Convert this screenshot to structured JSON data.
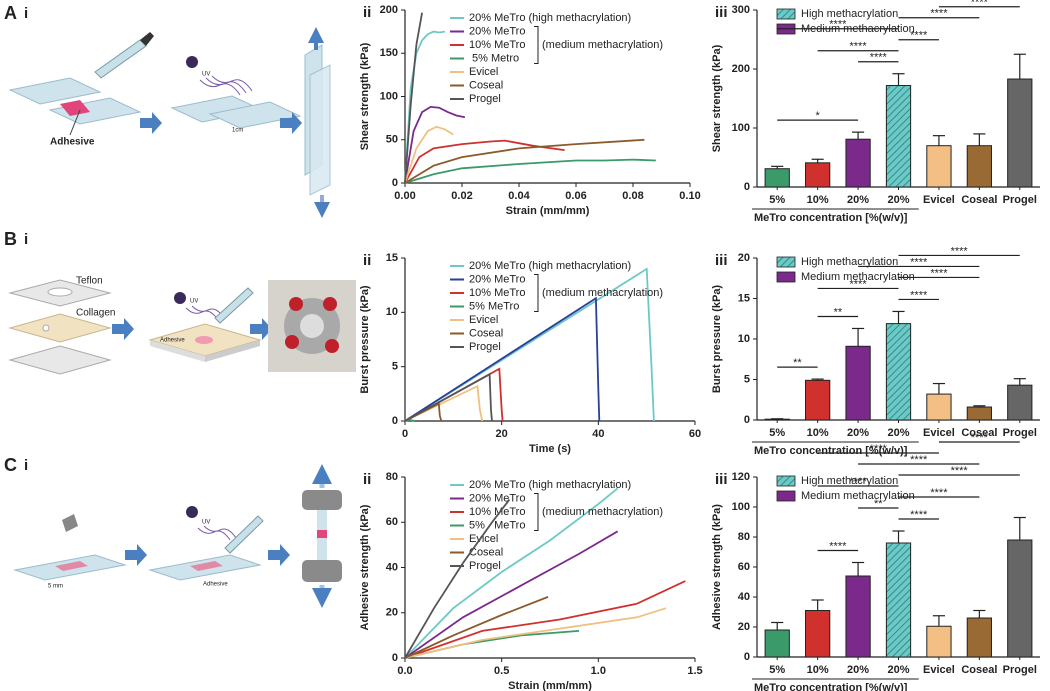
{
  "panels": [
    {
      "letter": "A",
      "sub": "i"
    },
    {
      "letter": "B",
      "sub": "i"
    },
    {
      "letter": "C",
      "sub": "i"
    }
  ],
  "illustrations": [
    {
      "texts": [
        "Adhesive",
        "UV",
        "1cm"
      ]
    },
    {
      "texts": [
        "Teflon",
        "Collagen",
        "UV",
        "Adhesive"
      ]
    },
    {
      "texts": [
        "UV",
        "Adhesive",
        "5 mm"
      ]
    }
  ],
  "chart_data": [
    {
      "type": "line",
      "label": "ii",
      "xlabel": "Strain (mm/mm)",
      "ylabel": "Shear strength (kPa)",
      "legend_group_label": "(medium methacrylation)",
      "xlim": [
        0,
        0.1
      ],
      "xticks": [
        {
          "value": 0,
          "label": "0.00"
        },
        {
          "value": 0.02,
          "label": "0.02"
        },
        {
          "value": 0.04,
          "label": "0.04"
        },
        {
          "value": 0.06,
          "label": "0.06"
        },
        {
          "value": 0.08,
          "label": "0.08"
        },
        {
          "value": 0.1,
          "label": "0.10"
        }
      ],
      "ylim": [
        0,
        200
      ],
      "yticks": [
        0,
        50,
        100,
        150,
        200
      ],
      "series": [
        {
          "name": "20% MeTro (high methacrylation)",
          "color": "#6cc9c5",
          "x": [
            0,
            0.002,
            0.004,
            0.006,
            0.008,
            0.01,
            0.012,
            0.014
          ],
          "values": [
            0,
            110,
            150,
            165,
            172,
            175,
            174,
            175
          ]
        },
        {
          "name": "20% MeTro",
          "color": "#7b2a8c",
          "x": [
            0,
            0.003,
            0.006,
            0.009,
            0.012,
            0.015,
            0.018,
            0.021
          ],
          "values": [
            0,
            60,
            82,
            88,
            87,
            82,
            78,
            76
          ]
        },
        {
          "name": "10% MeTro",
          "color": "#d0312d",
          "x": [
            0,
            0.005,
            0.01,
            0.02,
            0.03,
            0.035,
            0.045,
            0.056
          ],
          "values": [
            0,
            30,
            40,
            45,
            48,
            49,
            43,
            38
          ]
        },
        {
          "name": " 5% Metro",
          "color": "#3a9a6a",
          "x": [
            0,
            0.01,
            0.02,
            0.04,
            0.06,
            0.07,
            0.08,
            0.088
          ],
          "values": [
            0,
            10,
            17,
            22,
            26,
            26,
            27,
            26
          ]
        },
        {
          "name": "Evicel",
          "color": "#f0c080",
          "x": [
            0,
            0.004,
            0.008,
            0.011,
            0.014,
            0.017
          ],
          "values": [
            0,
            40,
            60,
            65,
            62,
            56
          ]
        },
        {
          "name": "Coseal",
          "color": "#8b5a2b",
          "x": [
            0,
            0.01,
            0.02,
            0.04,
            0.06,
            0.084
          ],
          "values": [
            0,
            20,
            30,
            40,
            45,
            50
          ]
        },
        {
          "name": "Progel",
          "color": "#555555",
          "x": [
            0,
            0.002,
            0.004,
            0.006
          ],
          "values": [
            0,
            90,
            160,
            197
          ]
        }
      ]
    },
    {
      "type": "bar",
      "label": "iii",
      "xlabel": "MeTro concentration [%(w/v)]",
      "ylabel": "Shear strength (kPa)",
      "ylim": [
        0,
        300
      ],
      "yticks": [
        0,
        100,
        200,
        300
      ],
      "categories": [
        "5%",
        "10%",
        "20%",
        "20%",
        "Evicel",
        "Coseal",
        "Progel"
      ],
      "values": [
        31,
        41,
        81,
        172,
        70,
        70,
        183
      ],
      "errors": [
        4,
        6,
        12,
        20,
        17,
        20,
        42
      ],
      "colors": [
        "#3a9a6a",
        "#d0312d",
        "#7b2a8c",
        "#6cc9c5",
        "#f3bf85",
        "#9a6a35",
        "#666666"
      ],
      "hatched": [
        false,
        false,
        false,
        true,
        false,
        false,
        false
      ],
      "legend": [
        {
          "name": "High methacrylation",
          "color": "#6cc9c5",
          "hatch": true
        },
        {
          "name": "Medium methacrylation",
          "color": "#7b2a8c",
          "hatch": false
        }
      ],
      "annotations": [
        {
          "label": "****",
          "between": [
            5,
            6
          ]
        },
        {
          "label": "****",
          "between": [
            4,
            6
          ]
        },
        {
          "label": "****",
          "between": [
            3,
            5
          ]
        },
        {
          "label": "****",
          "between": [
            0,
            3
          ]
        },
        {
          "label": "****",
          "between": [
            3,
            4
          ]
        },
        {
          "label": "****",
          "between": [
            1,
            3
          ]
        },
        {
          "label": "****",
          "between": [
            2,
            3
          ]
        },
        {
          "label": "*",
          "between": [
            0,
            2
          ]
        }
      ]
    },
    {
      "type": "line",
      "label": "ii",
      "xlabel": "Time (s)",
      "ylabel": "Burst pressure (kPa)",
      "legend_group_label": "(medium methacrylation)",
      "xlim": [
        0,
        60
      ],
      "xticks": [
        0,
        20,
        40,
        60
      ],
      "ylim": [
        0,
        15
      ],
      "yticks": [
        0,
        5,
        10,
        15
      ],
      "series": [
        {
          "name": "20% MeTro (high methacrylation)",
          "color": "#6cc9c5",
          "x": [
            0,
            50,
            51,
            51.5
          ],
          "values": [
            0,
            14,
            5,
            0
          ]
        },
        {
          "name": "20% MeTro",
          "color": "#2a3f9a",
          "x": [
            0,
            39.5,
            40,
            40.2
          ],
          "values": [
            0,
            11.3,
            3,
            0
          ]
        },
        {
          "name": "10% MeTro",
          "color": "#d0312d",
          "x": [
            0,
            19.5,
            20,
            20.2
          ],
          "values": [
            0,
            4.8,
            1,
            0
          ]
        },
        {
          "name": "5% MeTro",
          "color": "#3a9a6a",
          "x": [
            0,
            1,
            2
          ],
          "values": [
            0,
            0.1,
            0
          ]
        },
        {
          "name": "Evicel",
          "color": "#f0c080",
          "x": [
            0,
            15,
            15.5,
            16
          ],
          "values": [
            0,
            3.2,
            1,
            0
          ]
        },
        {
          "name": "Coseal",
          "color": "#8b5a2b",
          "x": [
            0,
            7,
            7.2,
            7.5
          ],
          "values": [
            0,
            1.6,
            0.5,
            0
          ]
        },
        {
          "name": "Progel",
          "color": "#555555",
          "x": [
            0,
            17.5,
            17.8,
            18
          ],
          "values": [
            0,
            4.3,
            1,
            0
          ]
        }
      ]
    },
    {
      "type": "bar",
      "label": "iii",
      "xlabel": "MeTro concentration [%(w/v)]",
      "ylabel": "Burst pressure (kPa)",
      "ylim": [
        0,
        20
      ],
      "yticks": [
        0,
        5,
        10,
        15,
        20
      ],
      "categories": [
        "5%",
        "10%",
        "20%",
        "20%",
        "Evicel",
        "Coseal",
        "Progel"
      ],
      "values": [
        0.1,
        4.9,
        9.1,
        11.9,
        3.2,
        1.6,
        4.3
      ],
      "errors": [
        0.05,
        0.15,
        2.2,
        1.5,
        1.3,
        0.15,
        0.8
      ],
      "colors": [
        "#3a9a6a",
        "#d0312d",
        "#7b2a8c",
        "#6cc9c5",
        "#f3bf85",
        "#9a6a35",
        "#666666"
      ],
      "hatched": [
        false,
        false,
        false,
        true,
        false,
        false,
        false
      ],
      "legend": [
        {
          "name": "High methacrylation",
          "color": "#6cc9c5",
          "hatch": true
        },
        {
          "name": "Medium methacrylation",
          "color": "#7b2a8c",
          "hatch": false
        }
      ],
      "annotations": [
        {
          "label": "****",
          "between": [
            3,
            6
          ]
        },
        {
          "label": "****",
          "between": [
            2,
            5
          ]
        },
        {
          "label": "****",
          "between": [
            3,
            5
          ]
        },
        {
          "label": "****",
          "between": [
            1,
            3
          ]
        },
        {
          "label": "****",
          "between": [
            3,
            4
          ]
        },
        {
          "label": "**",
          "between": [
            1,
            2
          ]
        },
        {
          "label": "**",
          "between": [
            0,
            1
          ]
        }
      ]
    },
    {
      "type": "line",
      "label": "ii",
      "xlabel": "Strain (mm/mm)",
      "ylabel": "Adhesive strength (kPa)",
      "legend_group_label": "(medium methacrylation)",
      "xlim": [
        0,
        1.5
      ],
      "xticks": [
        {
          "value": 0,
          "label": "0.0"
        },
        {
          "value": 0.5,
          "label": "0.5"
        },
        {
          "value": 1,
          "label": "1.0"
        },
        {
          "value": 1.5,
          "label": "1.5"
        }
      ],
      "ylim": [
        0,
        80
      ],
      "yticks": [
        0,
        20,
        40,
        60,
        80
      ],
      "series": [
        {
          "name": "20% MeTro (high methacrylation)",
          "color": "#6cc9c5",
          "x": [
            0,
            0.25,
            0.5,
            0.75,
            1,
            1.1
          ],
          "values": [
            0,
            22,
            38,
            52,
            68,
            75
          ]
        },
        {
          "name": "20% MeTro",
          "color": "#7b2a8c",
          "x": [
            0,
            0.3,
            0.6,
            0.9,
            1.1
          ],
          "values": [
            0,
            18,
            32,
            46,
            56
          ]
        },
        {
          "name": "10% MeTro",
          "color": "#d0312d",
          "x": [
            0,
            0.4,
            0.8,
            1.2,
            1.45
          ],
          "values": [
            0,
            12,
            17,
            24,
            34
          ]
        },
        {
          "name": "5%   MeTro",
          "color": "#3a9a6a",
          "x": [
            0,
            0.3,
            0.6,
            0.9
          ],
          "values": [
            0,
            6,
            10,
            12
          ]
        },
        {
          "name": "Evicel",
          "color": "#f0c080",
          "x": [
            0,
            0.4,
            0.8,
            1.2,
            1.35
          ],
          "values": [
            0,
            8,
            13,
            18,
            22
          ]
        },
        {
          "name": "Coseal",
          "color": "#8b5a2b",
          "x": [
            0,
            0.25,
            0.5,
            0.74
          ],
          "values": [
            0,
            10,
            19,
            27
          ]
        },
        {
          "name": "Progel",
          "color": "#555555",
          "x": [
            0,
            0.15,
            0.3,
            0.45,
            0.54
          ],
          "values": [
            0,
            22,
            42,
            60,
            70
          ]
        }
      ]
    },
    {
      "type": "bar",
      "label": "iii",
      "xlabel": "MeTro concentration [%(w/v)]",
      "ylabel": "Adhesive strength (kPa)",
      "ylim": [
        0,
        120
      ],
      "yticks": [
        0,
        20,
        40,
        60,
        80,
        100,
        120
      ],
      "categories": [
        "5%",
        "10%",
        "20%",
        "20%",
        "Evicel",
        "Coseal",
        "Progel"
      ],
      "values": [
        18,
        31,
        54,
        76,
        20.5,
        26,
        78
      ],
      "errors": [
        5,
        7,
        9,
        8,
        7,
        5,
        15
      ],
      "colors": [
        "#3a9a6a",
        "#d0312d",
        "#7b2a8c",
        "#6cc9c5",
        "#f3bf85",
        "#9a6a35",
        "#666666"
      ],
      "hatched": [
        false,
        false,
        false,
        true,
        false,
        false,
        false
      ],
      "legend": [
        {
          "name": "High methacrylation",
          "color": "#6cc9c5",
          "hatch": true
        },
        {
          "name": "Medium methacrylation",
          "color": "#7b2a8c",
          "hatch": false
        }
      ],
      "annotations": [
        {
          "label": "****",
          "between": [
            4,
            6
          ]
        },
        {
          "label": "****",
          "between": [
            1,
            4
          ]
        },
        {
          "label": "****",
          "between": [
            2,
            5
          ]
        },
        {
          "label": "****",
          "between": [
            3,
            6
          ]
        },
        {
          "label": "****",
          "between": [
            1,
            3
          ]
        },
        {
          "label": "****",
          "between": [
            3,
            5
          ]
        },
        {
          "label": "**",
          "between": [
            2,
            3
          ]
        },
        {
          "label": "****",
          "between": [
            3,
            4
          ]
        },
        {
          "label": "****",
          "between": [
            1,
            2
          ]
        }
      ]
    }
  ]
}
